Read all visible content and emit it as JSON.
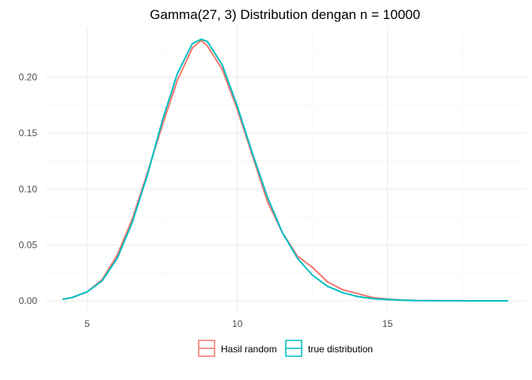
{
  "chart_data": {
    "type": "line",
    "title": "Gamma(27, 3) Distribution dengan n = 10000",
    "xlabel": "",
    "ylabel": "",
    "xlim": [
      3.6,
      19.6
    ],
    "ylim": [
      -0.0085,
      0.245
    ],
    "x_ticks": [
      5,
      10,
      15
    ],
    "x_tick_labels": [
      "5",
      "10",
      "15"
    ],
    "y_ticks": [
      0.0,
      0.05,
      0.1,
      0.15,
      0.2
    ],
    "y_tick_labels": [
      "0.00",
      "0.05",
      "0.10",
      "0.15",
      "0.20"
    ],
    "grid": true,
    "legend_position": "bottom",
    "series": [
      {
        "name": "Hasil random",
        "color": "#F8766D",
        "x": [
          4.2,
          4.5,
          5.0,
          5.5,
          6.0,
          6.5,
          7.0,
          7.5,
          8.0,
          8.5,
          8.8,
          9.0,
          9.5,
          10.0,
          10.5,
          11.0,
          11.5,
          12.0,
          12.5,
          13.0,
          13.5,
          14.0,
          14.5,
          15.0,
          15.5,
          16.0,
          17.0,
          18.0,
          19.0
        ],
        "y": [
          0.0015,
          0.003,
          0.008,
          0.019,
          0.041,
          0.073,
          0.114,
          0.157,
          0.197,
          0.226,
          0.233,
          0.228,
          0.207,
          0.171,
          0.13,
          0.089,
          0.061,
          0.04,
          0.03,
          0.017,
          0.01,
          0.0065,
          0.003,
          0.0015,
          0.0007,
          0.0003,
          0.0001,
          0.0,
          0.0
        ]
      },
      {
        "name": "true distribution",
        "color": "#00BFC4",
        "x": [
          4.2,
          4.5,
          5.0,
          5.5,
          6.0,
          6.5,
          7.0,
          7.5,
          8.0,
          8.5,
          8.8,
          9.0,
          9.5,
          10.0,
          10.5,
          11.0,
          11.5,
          12.0,
          12.5,
          13.0,
          13.5,
          14.0,
          14.5,
          15.0,
          15.5,
          16.0,
          17.0,
          18.0,
          19.0
        ],
        "y": [
          0.0015,
          0.003,
          0.008,
          0.018,
          0.038,
          0.07,
          0.112,
          0.161,
          0.203,
          0.23,
          0.234,
          0.232,
          0.211,
          0.174,
          0.132,
          0.093,
          0.061,
          0.038,
          0.023,
          0.013,
          0.0073,
          0.0039,
          0.002,
          0.0011,
          0.0005,
          0.0002,
          0.0001,
          0.0,
          0.0
        ]
      }
    ]
  }
}
